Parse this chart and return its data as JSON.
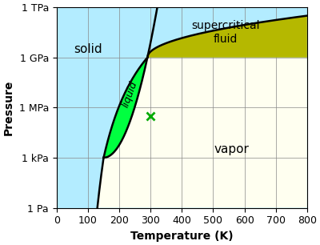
{
  "xlabel": "Temperature (K)",
  "ylabel": "Pressure",
  "xmin": 0,
  "xmax": 800,
  "ymin_log": 0,
  "ymax_log": 12,
  "yticks_log": [
    0,
    3,
    6,
    9,
    12
  ],
  "ytick_labels": [
    "1 Pa",
    "1 kPa",
    "1 MPa",
    "1 GPa",
    "1 TPa"
  ],
  "xticks": [
    0,
    100,
    200,
    300,
    400,
    500,
    600,
    700,
    800
  ],
  "color_solid": "#b3ecff",
  "color_liquid": "#00ff40",
  "color_vapor": "#fffff0",
  "color_supercritical": "#b5b800",
  "label_solid": "solid",
  "label_liquid": "liquid",
  "label_vapor": "vapor",
  "label_supercritical": "supercritical\nfluid",
  "x_marker": 300,
  "y_marker_log": 5.5,
  "marker_color": "#00aa00",
  "triple_T": 150,
  "triple_P_log": 3.0,
  "critical_T": 290,
  "critical_P_log": 9.0
}
